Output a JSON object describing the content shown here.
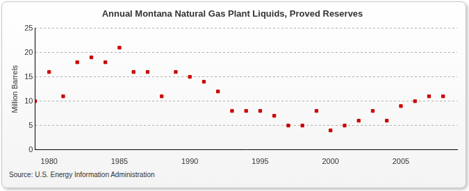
{
  "chart_data": {
    "type": "scatter",
    "title": "Annual Montana Natural Gas Plant Liquids, Proved Reserves",
    "y_label": "Million Barrels",
    "source": "Source: U.S. Energy Information Administration",
    "x": [
      1979,
      1980,
      1981,
      1982,
      1983,
      1984,
      1985,
      1986,
      1987,
      1988,
      1989,
      1990,
      1991,
      1992,
      1993,
      1994,
      1995,
      1996,
      1997,
      1998,
      1999,
      2000,
      2001,
      2002,
      2003,
      2004,
      2005,
      2006,
      2007,
      2008
    ],
    "values": [
      10,
      16,
      11,
      18,
      19,
      18,
      21,
      16,
      16,
      11,
      16,
      15,
      14,
      12,
      8,
      8,
      8,
      7,
      5,
      5,
      8,
      4,
      5,
      6,
      8,
      6,
      9,
      10,
      11,
      11
    ],
    "color": "#cc0000",
    "marker": "square",
    "xlim": [
      1979,
      2009
    ],
    "xticks": [
      1980,
      1985,
      1990,
      1995,
      2000,
      2005
    ],
    "ylim": [
      0,
      25
    ],
    "yticks": [
      0,
      5,
      10,
      15,
      20,
      25
    ],
    "grid": true
  }
}
